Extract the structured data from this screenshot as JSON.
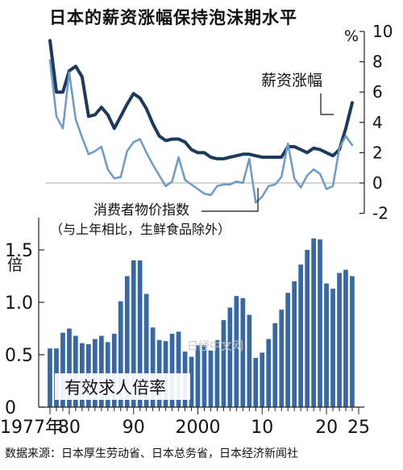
{
  "page": {
    "title": "日本的薪资涨幅保持泡沫期水平",
    "source": "数据来源：日本厚生劳动省、日本总务省，日本经济新闻社",
    "watermark": "日经中文网"
  },
  "chart_data": [
    {
      "type": "line",
      "title": "日本的薪资涨幅保持泡沫期水平",
      "y_unit": "%",
      "ylim": [
        -2,
        10
      ],
      "y_ticks": [
        "-2",
        "0",
        "2",
        "4",
        "6",
        "8",
        "10"
      ],
      "series": [
        {
          "name": "薪资涨幅",
          "color": "#1b3a5c",
          "x": [
            1977,
            1978,
            1979,
            1980,
            1981,
            1982,
            1983,
            1984,
            1985,
            1986,
            1987,
            1988,
            1989,
            1990,
            1991,
            1992,
            1993,
            1994,
            1995,
            1996,
            1997,
            1998,
            1999,
            2000,
            2001,
            2002,
            2003,
            2004,
            2005,
            2006,
            2007,
            2008,
            2009,
            2010,
            2011,
            2012,
            2013,
            2014,
            2015,
            2016,
            2017,
            2018,
            2019,
            2020,
            2021,
            2022,
            2023,
            2024
          ],
          "values": [
            9.4,
            6.0,
            6.0,
            7.4,
            7.7,
            7.0,
            4.4,
            4.5,
            5.0,
            4.5,
            3.6,
            4.4,
            5.2,
            5.9,
            5.6,
            4.9,
            3.9,
            3.1,
            2.8,
            2.9,
            2.9,
            2.7,
            2.2,
            2.0,
            2.0,
            1.7,
            1.6,
            1.6,
            1.7,
            1.8,
            1.9,
            1.9,
            1.8,
            1.7,
            1.7,
            1.7,
            1.7,
            2.4,
            2.4,
            2.2,
            2.0,
            2.3,
            2.2,
            2.0,
            1.8,
            2.2,
            3.6,
            5.3
          ]
        },
        {
          "name": "消费者物价指数",
          "note": "（与上年相比，生鲜食品除外）",
          "color": "#6c9ac9",
          "x": [
            1977,
            1978,
            1979,
            1980,
            1981,
            1982,
            1983,
            1984,
            1985,
            1986,
            1987,
            1988,
            1989,
            1990,
            1991,
            1992,
            1993,
            1994,
            1995,
            1996,
            1997,
            1998,
            1999,
            2000,
            2001,
            2002,
            2003,
            2004,
            2005,
            2006,
            2007,
            2008,
            2009,
            2010,
            2011,
            2012,
            2013,
            2014,
            2015,
            2016,
            2017,
            2018,
            2019,
            2020,
            2021,
            2022,
            2023,
            2024
          ],
          "values": [
            8.1,
            4.4,
            3.6,
            7.3,
            4.2,
            3.0,
            1.9,
            2.1,
            2.4,
            0.9,
            0.3,
            0.4,
            2.1,
            2.7,
            2.9,
            2.0,
            1.2,
            0.5,
            -0.2,
            0.1,
            1.7,
            0.2,
            -0.1,
            -0.4,
            -0.7,
            -0.8,
            -0.2,
            -0.1,
            -0.1,
            0.1,
            0.0,
            1.6,
            -1.3,
            -0.9,
            -0.2,
            -0.1,
            0.4,
            2.6,
            0.3,
            -0.3,
            0.5,
            0.9,
            0.6,
            -0.4,
            -0.2,
            2.3,
            3.1,
            2.5
          ]
        }
      ]
    },
    {
      "type": "bar",
      "series_name": "有效求人倍率",
      "y_unit": "倍",
      "ylim": [
        0,
        1.7
      ],
      "y_ticks": [
        "0",
        "0.5",
        "1.0",
        "1.5"
      ],
      "x_tick_labels": [
        "1977年",
        "80",
        "90",
        "2000",
        "10",
        "20",
        "25"
      ],
      "color": "#3568a6",
      "x": [
        1977,
        1978,
        1979,
        1980,
        1981,
        1982,
        1983,
        1984,
        1985,
        1986,
        1987,
        1988,
        1989,
        1990,
        1991,
        1992,
        1993,
        1994,
        1995,
        1996,
        1997,
        1998,
        1999,
        2000,
        2001,
        2002,
        2003,
        2004,
        2005,
        2006,
        2007,
        2008,
        2009,
        2010,
        2011,
        2012,
        2013,
        2014,
        2015,
        2016,
        2017,
        2018,
        2019,
        2020,
        2021,
        2022,
        2023,
        2024
      ],
      "values": [
        0.56,
        0.56,
        0.71,
        0.75,
        0.68,
        0.61,
        0.6,
        0.65,
        0.68,
        0.62,
        0.7,
        1.01,
        1.25,
        1.4,
        1.4,
        1.08,
        0.76,
        0.64,
        0.63,
        0.7,
        0.72,
        0.53,
        0.48,
        0.59,
        0.59,
        0.54,
        0.64,
        0.83,
        0.95,
        1.06,
        1.04,
        0.88,
        0.47,
        0.52,
        0.65,
        0.8,
        0.93,
        1.09,
        1.2,
        1.36,
        1.5,
        1.61,
        1.6,
        1.18,
        1.13,
        1.28,
        1.31,
        1.25
      ]
    }
  ]
}
